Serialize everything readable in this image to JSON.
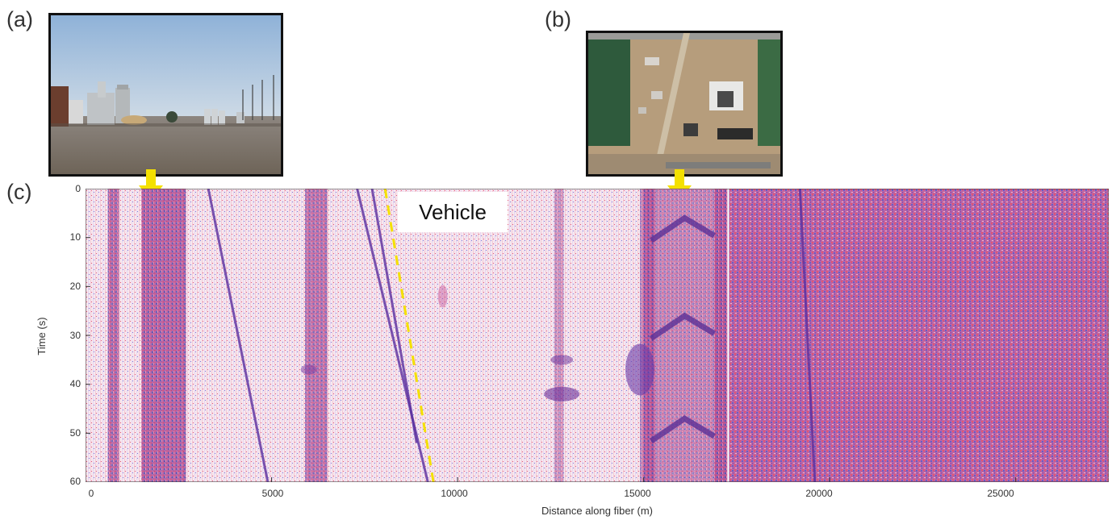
{
  "panels": {
    "a": "(a)",
    "b": "(b)",
    "c": "(c)"
  },
  "annotation": {
    "vehicle": "Vehicle"
  },
  "colors": {
    "arrow": "#f4e000",
    "dashed_line": "#f4e000",
    "negative": "#3a3ab8",
    "positive": "#e02040",
    "background": "#f7ecf0"
  },
  "chart_data": {
    "type": "heatmap",
    "title": "",
    "xlabel": "Distance along fiber (m)",
    "ylabel": "Time (s)",
    "xlim": [
      0,
      27500
    ],
    "ylim": [
      0,
      60
    ],
    "y_inverted": true,
    "xticks": [
      "0",
      "5000",
      "10000",
      "15000",
      "20000",
      "25000"
    ],
    "yticks": [
      "0",
      "10",
      "20",
      "30",
      "40",
      "50",
      "60"
    ],
    "annotations": [
      {
        "text": "Vehicle",
        "x": 10000,
        "y": 6
      }
    ]
  }
}
